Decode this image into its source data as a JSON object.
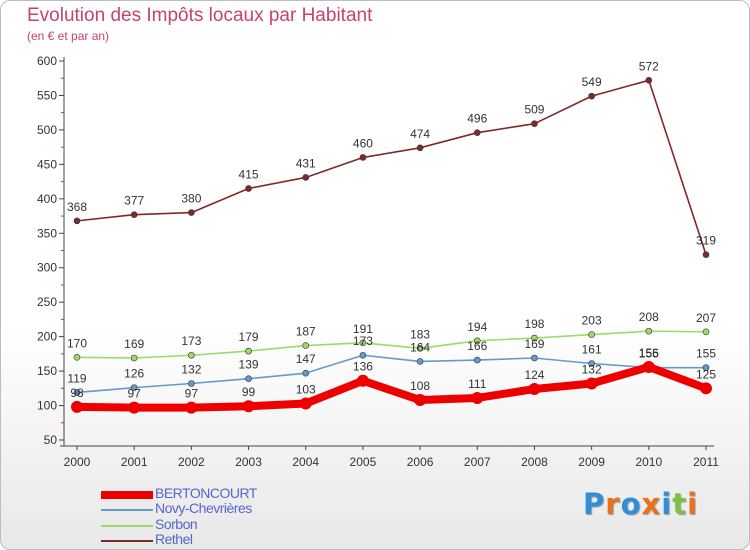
{
  "title": "Evolution des Impôts locaux par Habitant",
  "subtitle": "(en € et par an)",
  "logo": {
    "text": "Proxiti",
    "letter_colors": [
      "#2f8fd8",
      "#e8711c",
      "#2f8fd8",
      "#e8711c",
      "#2f8fd8",
      "#7dc242",
      "#e8711c"
    ]
  },
  "chart_data": {
    "type": "line",
    "title": "Evolution des Impôts locaux par Habitant",
    "subtitle": "(en € et par an)",
    "xlabel": "",
    "ylabel": "",
    "ylim": [
      50,
      600
    ],
    "yticks": [
      50,
      100,
      150,
      200,
      250,
      300,
      350,
      400,
      450,
      500,
      550,
      600
    ],
    "grid": false,
    "legend_position": "bottom-left",
    "x": [
      "2000",
      "2001",
      "2002",
      "2003",
      "2004",
      "2005",
      "2006",
      "2007",
      "2008",
      "2009",
      "2010",
      "2011"
    ],
    "series": [
      {
        "name": "BERTONCOURT",
        "color": "#ee0000",
        "values": [
          98,
          97,
          97,
          99,
          103,
          136,
          108,
          111,
          124,
          132,
          156,
          125
        ]
      },
      {
        "name": "Novy-Chevrières",
        "color": "#6699cc",
        "values": [
          119,
          126,
          132,
          139,
          147,
          173,
          164,
          166,
          169,
          161,
          155,
          155
        ]
      },
      {
        "name": "Sorbon",
        "color": "#99dd66",
        "values": [
          170,
          169,
          173,
          179,
          187,
          191,
          183,
          194,
          198,
          203,
          208,
          207
        ]
      },
      {
        "name": "Rethel",
        "color": "#7f2a2a",
        "values": [
          368,
          377,
          380,
          415,
          431,
          460,
          474,
          496,
          509,
          549,
          572,
          319
        ]
      }
    ]
  }
}
